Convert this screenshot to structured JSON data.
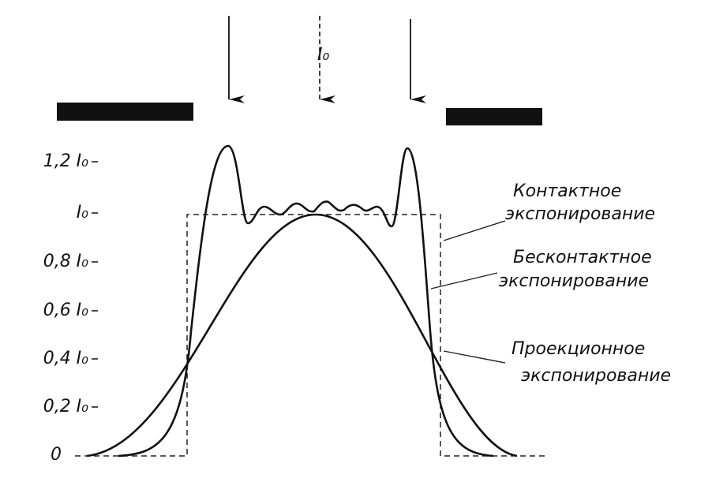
{
  "top_label": "I₀",
  "y_axis": {
    "labels": [
      "1,2 I₀",
      "I₀",
      "0,8 I₀",
      "0,6 I₀",
      "0,4 I₀",
      "0,2 I₀",
      "0"
    ]
  },
  "curve_labels": [
    {
      "lines": [
        "Контактное",
        "экспонирование"
      ]
    },
    {
      "lines": [
        "Бесконтактное",
        "экспонирование"
      ]
    },
    {
      "lines": [
        "Проекционное",
        "экспонирование"
      ]
    }
  ]
}
